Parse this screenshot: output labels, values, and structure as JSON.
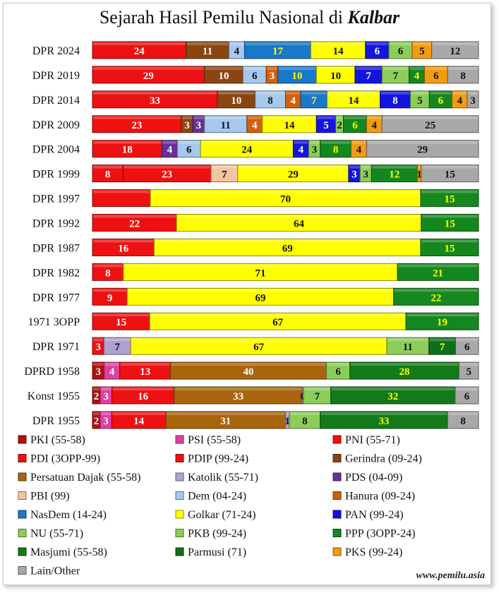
{
  "title_prefix": "Sejarah Hasil Pemilu Nasional di ",
  "title_emph": "Kalbar",
  "footer": "www.pemilu.asia",
  "chart_data": {
    "type": "bar",
    "orientation": "horizontal-stacked-100",
    "title": "Sejarah Hasil Pemilu Nasional di Kalbar",
    "parties": {
      "PKI": {
        "label": "PKI (55-58)",
        "color": "#b01010"
      },
      "PSI": {
        "label": "PSI (55-58)",
        "color": "#e040a0"
      },
      "PNI": {
        "label": "PNI (55-71)",
        "color": "#ee1111"
      },
      "PDI": {
        "label": "PDI (3OPP-99)",
        "color": "#ee1111"
      },
      "PDIP": {
        "label": "PDIP (99-24)",
        "color": "#ee1111"
      },
      "Gerindra": {
        "label": "Gerindra (09-24)",
        "color": "#8b4513"
      },
      "PD": {
        "label": "Persatuan Dajak (55-58)",
        "color": "#a8650c"
      },
      "Katolik": {
        "label": "Katolik (55-71)",
        "color": "#b0a0d0"
      },
      "PDS": {
        "label": "PDS (04-09)",
        "color": "#6a2f9a"
      },
      "PBI": {
        "label": "PBI (99)",
        "color": "#f4c4a0"
      },
      "Dem": {
        "label": "Dem (04-24)",
        "color": "#a6c8ee"
      },
      "Hanura": {
        "label": "Hanura (09-24)",
        "color": "#d35f0a"
      },
      "NasDem": {
        "label": "NasDem (14-24)",
        "color": "#1a78c8"
      },
      "Golkar": {
        "label": "Golkar (71-24)",
        "color": "#ffff00"
      },
      "PAN": {
        "label": "PAN (99-24)",
        "color": "#1414e0"
      },
      "NU": {
        "label": "NU (55-71)",
        "color": "#8ccd5a"
      },
      "PKB": {
        "label": "PKB (99-24)",
        "color": "#8ccd5a"
      },
      "PPP": {
        "label": "PPP (3OPP-24)",
        "color": "#15871f"
      },
      "Masjumi": {
        "label": "Masjumi (55-58)",
        "color": "#127a1a"
      },
      "Parmusi": {
        "label": "Parmusi (71)",
        "color": "#0f6e1a"
      },
      "PKS": {
        "label": "PKS (99-24)",
        "color": "#f39c12"
      },
      "Lain": {
        "label": "Lain/Other",
        "color": "#a8a8a8"
      }
    },
    "legend_order": [
      "PKI",
      "PSI",
      "PNI",
      "PDI",
      "PDIP",
      "Gerindra",
      "PD",
      "Katolik",
      "PDS",
      "PBI",
      "Dem",
      "Hanura",
      "NasDem",
      "Golkar",
      "PAN",
      "NU",
      "PKB",
      "PPP",
      "Masjumi",
      "Parmusi",
      "PKS",
      "Lain"
    ],
    "rows": [
      {
        "label": "DPR 2024",
        "segments": [
          [
            "PDIP",
            24,
            "24"
          ],
          [
            "Gerindra",
            11,
            "11"
          ],
          [
            "Dem",
            4,
            "4"
          ],
          [
            "NasDem",
            17,
            "17"
          ],
          [
            "Golkar",
            14,
            "14"
          ],
          [
            "PAN",
            6,
            "6"
          ],
          [
            "PKB",
            6,
            "6"
          ],
          [
            "PKS",
            5,
            "5"
          ],
          [
            "Lain",
            12,
            "12"
          ]
        ]
      },
      {
        "label": "DPR 2019",
        "segments": [
          [
            "PDIP",
            29,
            "29"
          ],
          [
            "Gerindra",
            10,
            "10"
          ],
          [
            "Dem",
            6,
            "6"
          ],
          [
            "Hanura",
            3,
            "3"
          ],
          [
            "NasDem",
            10,
            "10"
          ],
          [
            "Golkar",
            10,
            "10"
          ],
          [
            "PAN",
            7,
            "7"
          ],
          [
            "PKB",
            7,
            "7"
          ],
          [
            "PPP",
            4,
            "4"
          ],
          [
            "PKS",
            6,
            "6"
          ],
          [
            "Lain",
            8,
            "8"
          ]
        ]
      },
      {
        "label": "DPR 2014",
        "segments": [
          [
            "PDIP",
            33,
            "33"
          ],
          [
            "Gerindra",
            10,
            "10"
          ],
          [
            "Dem",
            8,
            "8"
          ],
          [
            "Hanura",
            4,
            "4"
          ],
          [
            "NasDem",
            7,
            "7"
          ],
          [
            "Golkar",
            14,
            "14"
          ],
          [
            "PAN",
            8,
            "8"
          ],
          [
            "PKB",
            5,
            "5"
          ],
          [
            "PPP",
            6,
            "6"
          ],
          [
            "PKS",
            4,
            "4"
          ],
          [
            "Lain",
            3,
            "3"
          ]
        ]
      },
      {
        "label": "DPR 2009",
        "segments": [
          [
            "PDIP",
            23,
            "23"
          ],
          [
            "Gerindra",
            3,
            "3"
          ],
          [
            "PDS",
            3,
            "3"
          ],
          [
            "Dem",
            11,
            "11"
          ],
          [
            "Hanura",
            4,
            "4"
          ],
          [
            "Golkar",
            14,
            "14"
          ],
          [
            "PAN",
            5,
            "5"
          ],
          [
            "PKB",
            2,
            "2"
          ],
          [
            "PPP",
            6,
            "6"
          ],
          [
            "PKS",
            4,
            "4"
          ],
          [
            "Lain",
            25,
            "25"
          ]
        ]
      },
      {
        "label": "DPR 2004",
        "segments": [
          [
            "PDIP",
            18,
            "18"
          ],
          [
            "PDS",
            4,
            "4"
          ],
          [
            "Dem",
            6,
            "6"
          ],
          [
            "Golkar",
            24,
            "24"
          ],
          [
            "PAN",
            4,
            "4"
          ],
          [
            "PKB",
            3,
            "3"
          ],
          [
            "PPP",
            8,
            "8"
          ],
          [
            "PKS",
            4,
            "4"
          ],
          [
            "Lain",
            29,
            "29"
          ]
        ]
      },
      {
        "label": "DPR 1999",
        "segments": [
          [
            "PDI",
            8,
            "8"
          ],
          [
            "PDIP",
            23,
            "23"
          ],
          [
            "PBI",
            7,
            "7"
          ],
          [
            "Golkar",
            29,
            "29"
          ],
          [
            "PAN",
            3,
            "3"
          ],
          [
            "PKB",
            3,
            "3"
          ],
          [
            "PPP",
            12,
            "12"
          ],
          [
            "PKS",
            1,
            "1"
          ],
          [
            "Lain",
            15,
            "15"
          ]
        ]
      },
      {
        "label": "DPR 1997",
        "segments": [
          [
            "PDI",
            15,
            ""
          ],
          [
            "Golkar",
            70,
            "70"
          ],
          [
            "PPP",
            15,
            "15"
          ]
        ]
      },
      {
        "label": "DPR 1992",
        "segments": [
          [
            "PDI",
            22,
            "22"
          ],
          [
            "Golkar",
            64,
            "64"
          ],
          [
            "PPP",
            15,
            "15"
          ]
        ]
      },
      {
        "label": "DPR 1987",
        "segments": [
          [
            "PDI",
            16,
            "16"
          ],
          [
            "Golkar",
            69,
            "69"
          ],
          [
            "PPP",
            15,
            "15"
          ]
        ]
      },
      {
        "label": "DPR 1982",
        "segments": [
          [
            "PDI",
            8,
            "8"
          ],
          [
            "Golkar",
            71,
            "71"
          ],
          [
            "PPP",
            21,
            "21"
          ]
        ]
      },
      {
        "label": "DPR 1977",
        "segments": [
          [
            "PDI",
            9,
            "9"
          ],
          [
            "Golkar",
            69,
            "69"
          ],
          [
            "PPP",
            22,
            "22"
          ]
        ]
      },
      {
        "label": "1971 3OPP",
        "segments": [
          [
            "PDI",
            15,
            "15"
          ],
          [
            "Golkar",
            67,
            "67"
          ],
          [
            "PPP",
            19,
            "19"
          ]
        ]
      },
      {
        "label": "DPR 1971",
        "segments": [
          [
            "PNI",
            3,
            "3"
          ],
          [
            "Katolik",
            7,
            "7"
          ],
          [
            "Golkar",
            67,
            "67"
          ],
          [
            "NU",
            11,
            "11"
          ],
          [
            "Parmusi",
            7,
            "7"
          ],
          [
            "Lain",
            6,
            "6"
          ]
        ]
      },
      {
        "label": "DPRD 1958",
        "segments": [
          [
            "PKI",
            3,
            "3"
          ],
          [
            "PSI",
            4,
            "4"
          ],
          [
            "PNI",
            13,
            "13"
          ],
          [
            "PD",
            40,
            "40"
          ],
          [
            "NU",
            6,
            "6"
          ],
          [
            "Masjumi",
            28,
            "28"
          ],
          [
            "Lain",
            5,
            "5"
          ]
        ]
      },
      {
        "label": "Konst 1955",
        "segments": [
          [
            "PKI",
            2,
            "2"
          ],
          [
            "PSI",
            3,
            "3"
          ],
          [
            "PNI",
            16,
            "16"
          ],
          [
            "PD",
            33,
            "33"
          ],
          [
            "Katolik",
            0.3,
            "0"
          ],
          [
            "NU",
            7,
            "7"
          ],
          [
            "Masjumi",
            32,
            "32"
          ],
          [
            "Lain",
            6,
            "6"
          ]
        ]
      },
      {
        "label": "DPR 1955",
        "segments": [
          [
            "PKI",
            2,
            "2"
          ],
          [
            "PSI",
            3,
            "3"
          ],
          [
            "PNI",
            14,
            "14"
          ],
          [
            "PD",
            31,
            "31"
          ],
          [
            "Katolik",
            1,
            "1"
          ],
          [
            "NU",
            8,
            "8"
          ],
          [
            "Masjumi",
            33,
            "33"
          ],
          [
            "Lain",
            8,
            "8"
          ]
        ]
      }
    ]
  }
}
